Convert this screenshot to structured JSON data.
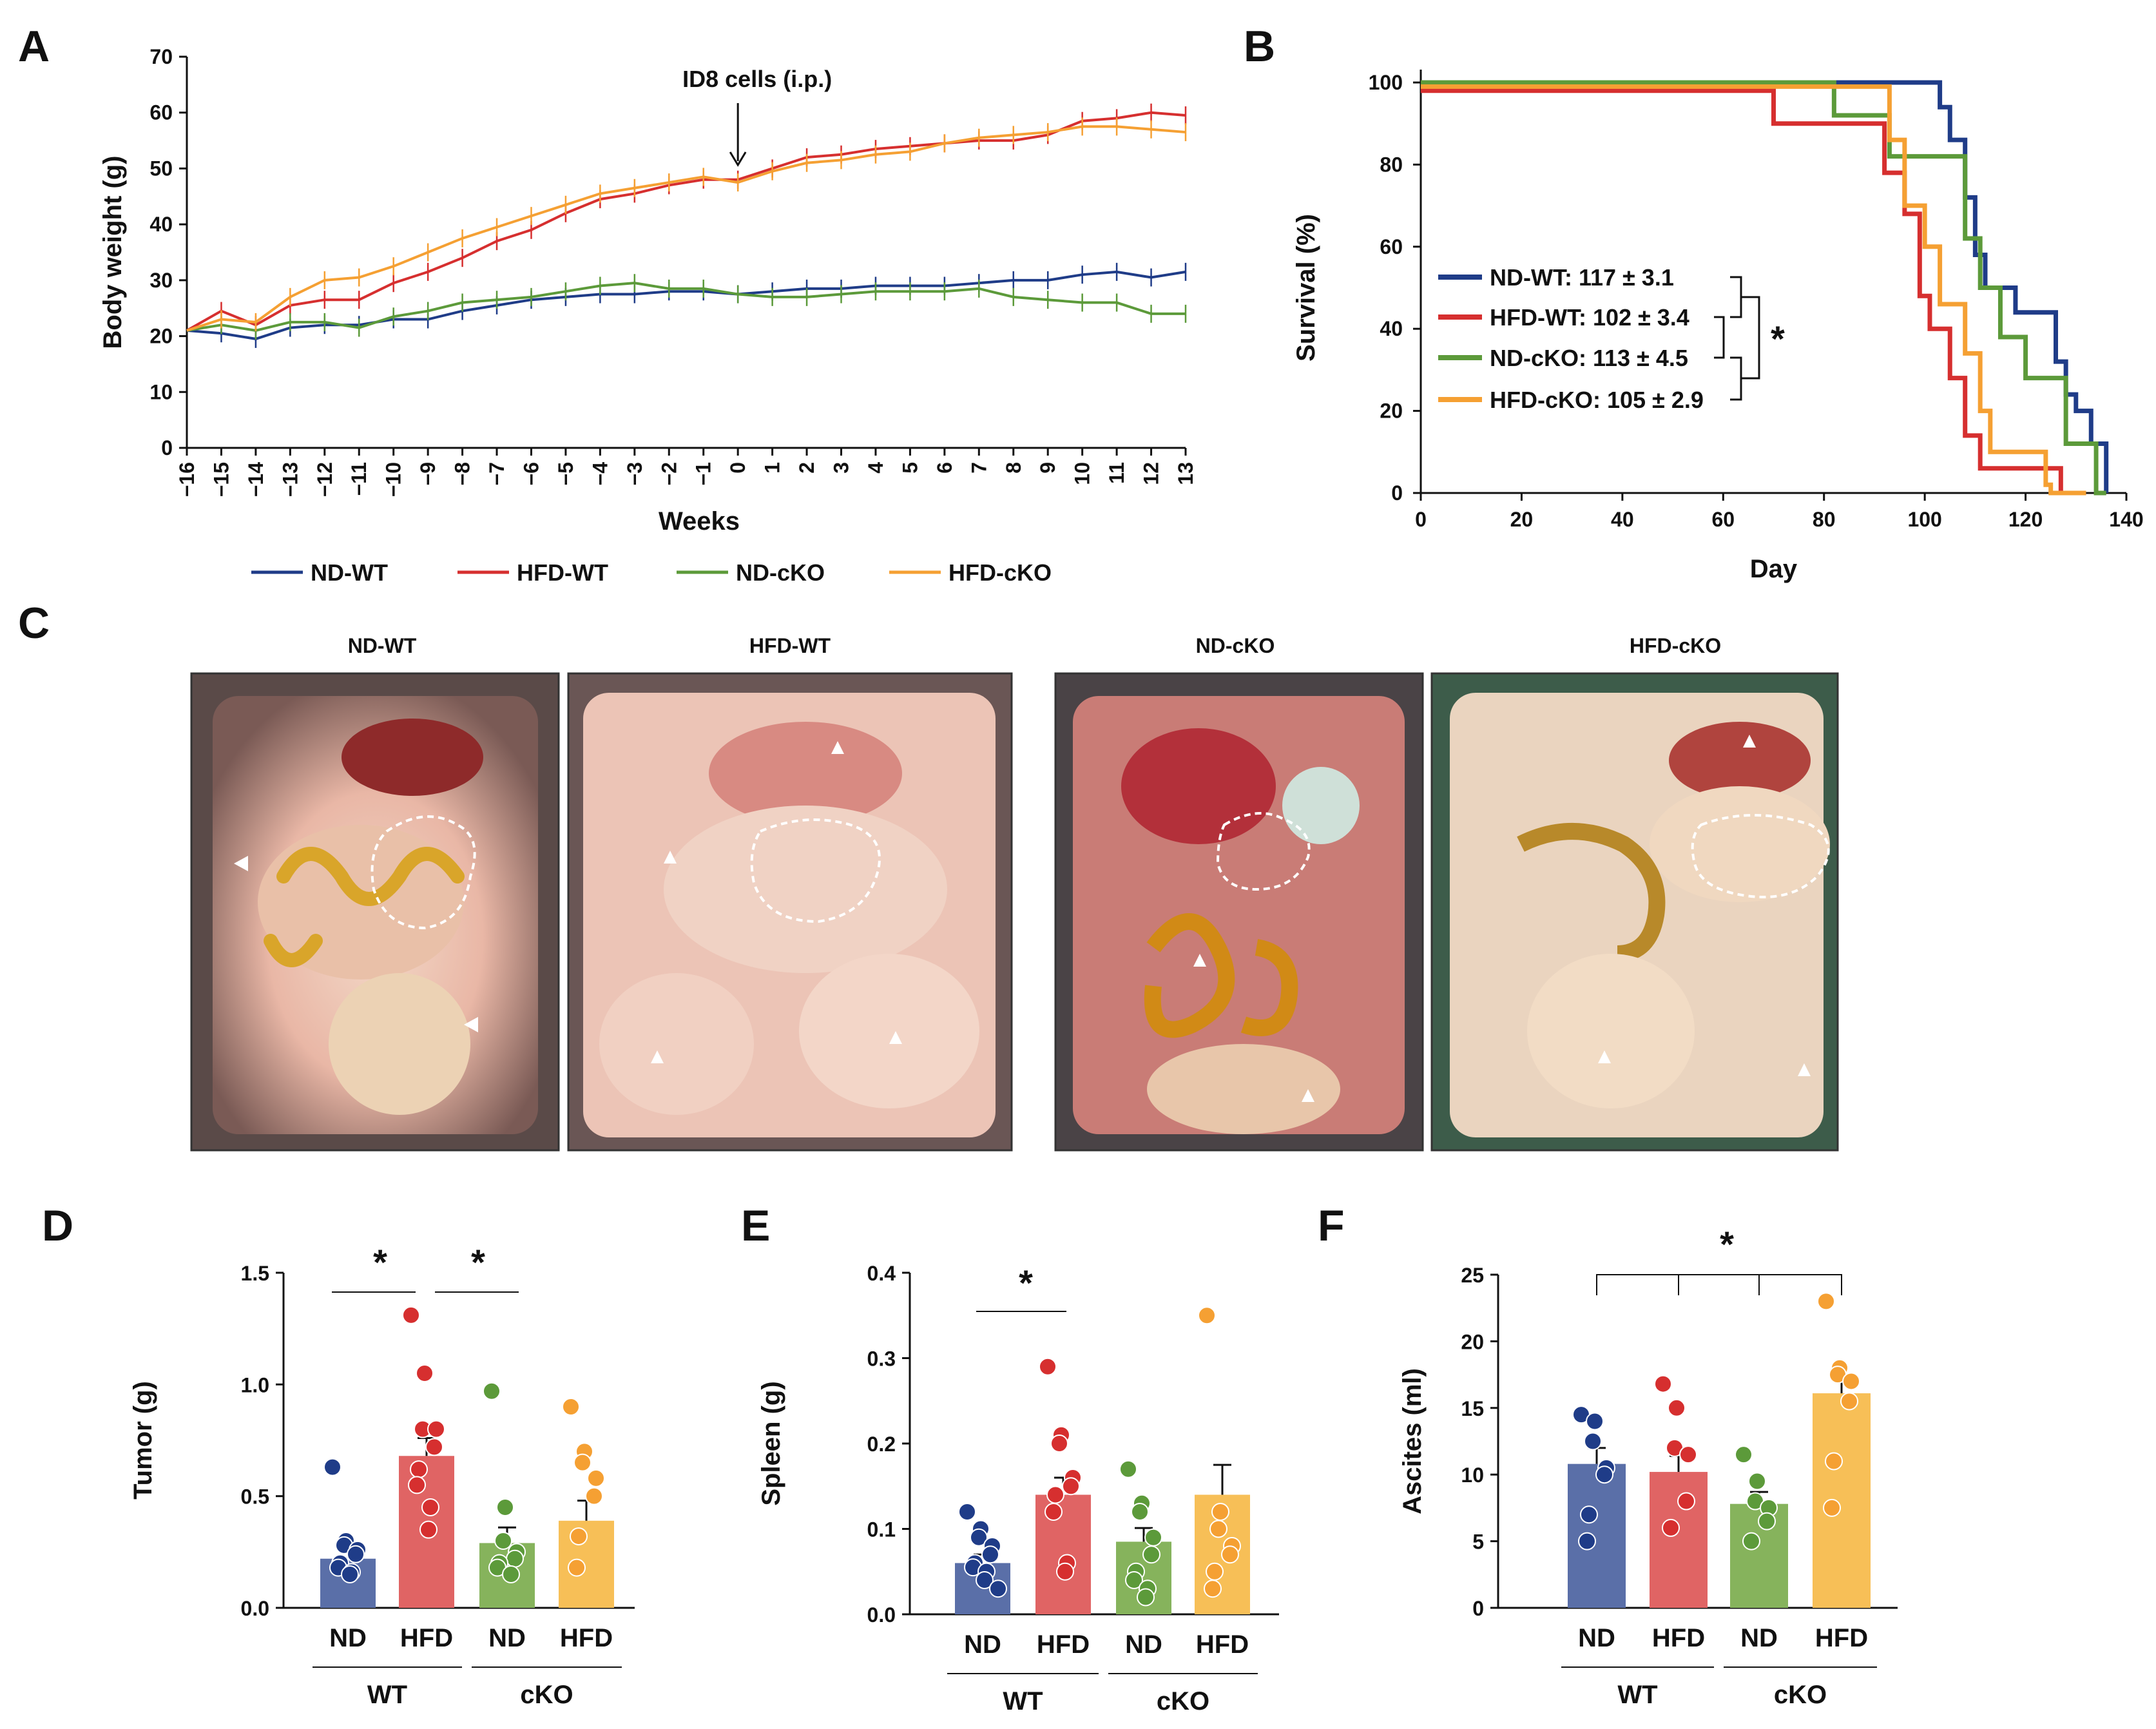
{
  "panel_labels": {
    "a": "A",
    "b": "B",
    "c": "C",
    "d": "D",
    "e": "E",
    "f": "F"
  },
  "colors": {
    "nd_wt": "#1f3c88",
    "hfd_wt": "#d62f2f",
    "nd_cko": "#5c9a3a",
    "hfd_cko": "#f5a033",
    "nd_wt_bar": "#5a6fa8",
    "hfd_wt_bar": "#e06464",
    "nd_cko_bar": "#86b35c",
    "hfd_cko_bar": "#f7bf57"
  },
  "chart_data": [
    {
      "id": "A",
      "type": "line",
      "title": "",
      "xlabel": "Weeks",
      "ylabel": "Body weight (g)",
      "ylim": [
        0,
        70
      ],
      "yticks": [
        0,
        10,
        20,
        30,
        40,
        50,
        60,
        70
      ],
      "x": [
        -16,
        -15,
        -14,
        -13,
        -12,
        -11,
        -10,
        -9,
        -8,
        -7,
        -6,
        -5,
        -4,
        -3,
        -2,
        -1,
        0,
        1,
        2,
        3,
        4,
        5,
        6,
        7,
        8,
        9,
        10,
        11,
        12,
        13
      ],
      "xtick_labels": [
        "−16",
        "−15",
        "−14",
        "−13",
        "−12",
        "−11",
        "−10",
        "−9",
        "−8",
        "−7",
        "−6",
        "−5",
        "−4",
        "−3",
        "−2",
        "−1",
        "0",
        "1",
        "2",
        "3",
        "4",
        "5",
        "6",
        "7",
        "8",
        "9",
        "10",
        "11",
        "12",
        "13"
      ],
      "annotation": "ID8 cells (i.p.)",
      "series": [
        {
          "name": "ND-WT",
          "values": [
            21,
            20.5,
            19.5,
            21.5,
            22,
            22,
            23,
            23,
            24.5,
            25.5,
            26.5,
            27,
            27.5,
            27.5,
            28,
            28,
            27.5,
            28,
            28.5,
            28.5,
            29,
            29,
            29,
            29.5,
            30,
            30,
            31,
            31.5,
            30.5,
            31.5
          ]
        },
        {
          "name": "HFD-WT",
          "values": [
            21,
            24.5,
            22,
            25.5,
            26.5,
            26.5,
            29.5,
            31.5,
            34,
            37,
            39,
            42,
            44.5,
            45.5,
            47,
            48,
            48,
            50,
            52,
            52.5,
            53.5,
            54,
            54.5,
            55,
            55,
            56,
            58.5,
            59,
            60,
            59.5
          ]
        },
        {
          "name": "ND-cKO",
          "values": [
            21,
            22,
            21,
            22.5,
            22.5,
            21.5,
            23.5,
            24.5,
            26,
            26.5,
            27,
            28,
            29,
            29.5,
            28.5,
            28.5,
            27.5,
            27,
            27,
            27.5,
            28,
            28,
            28,
            28.5,
            27,
            26.5,
            26,
            26,
            24,
            24
          ]
        },
        {
          "name": "HFD-cKO",
          "values": [
            21,
            23,
            22.5,
            27,
            30,
            30.5,
            32.5,
            35,
            37.5,
            39.5,
            41.5,
            43.5,
            45.5,
            46.5,
            47.5,
            48.5,
            47.5,
            49.5,
            51,
            51.5,
            52.5,
            53,
            54.5,
            55.5,
            56,
            56.5,
            57.5,
            57.5,
            57,
            56.5
          ]
        }
      ],
      "legend": [
        "ND-WT",
        "HFD-WT",
        "ND-cKO",
        "HFD-cKO"
      ]
    },
    {
      "id": "B",
      "type": "line",
      "title": "",
      "xlabel": "Day",
      "ylabel": "Survival (%)",
      "xlim": [
        0,
        140
      ],
      "ylim": [
        0,
        100
      ],
      "xticks": [
        0,
        20,
        40,
        60,
        80,
        100,
        120,
        140
      ],
      "yticks": [
        0,
        20,
        40,
        60,
        80,
        100
      ],
      "series": [
        {
          "name": "ND-WT",
          "legend": "ND-WT: 117 ± 3.1",
          "points": [
            [
              0,
              100
            ],
            [
              103,
              100
            ],
            [
              103,
              94
            ],
            [
              105,
              94
            ],
            [
              105,
              86
            ],
            [
              108,
              86
            ],
            [
              108,
              72
            ],
            [
              110,
              72
            ],
            [
              110,
              58
            ],
            [
              112,
              58
            ],
            [
              112,
              50
            ],
            [
              118,
              50
            ],
            [
              118,
              44
            ],
            [
              126,
              44
            ],
            [
              126,
              32
            ],
            [
              128,
              32
            ],
            [
              128,
              24
            ],
            [
              130,
              24
            ],
            [
              130,
              20
            ],
            [
              133,
              20
            ],
            [
              133,
              12
            ],
            [
              136,
              12
            ],
            [
              136,
              0
            ]
          ]
        },
        {
          "name": "HFD-WT",
          "legend": "HFD-WT: 102 ± 3.4",
          "points": [
            [
              0,
              98
            ],
            [
              70,
              98
            ],
            [
              70,
              90
            ],
            [
              92,
              90
            ],
            [
              92,
              78
            ],
            [
              96,
              78
            ],
            [
              96,
              68
            ],
            [
              99,
              68
            ],
            [
              99,
              48
            ],
            [
              101,
              48
            ],
            [
              101,
              40
            ],
            [
              105,
              40
            ],
            [
              105,
              28
            ],
            [
              108,
              28
            ],
            [
              108,
              14
            ],
            [
              111,
              14
            ],
            [
              111,
              6
            ],
            [
              127,
              6
            ],
            [
              127,
              0
            ],
            [
              132,
              0
            ]
          ]
        },
        {
          "name": "ND-cKO",
          "legend": "ND-cKO: 113 ± 4.5",
          "points": [
            [
              0,
              100
            ],
            [
              82,
              100
            ],
            [
              82,
              92
            ],
            [
              93,
              92
            ],
            [
              93,
              82
            ],
            [
              108,
              82
            ],
            [
              108,
              62
            ],
            [
              111,
              62
            ],
            [
              111,
              50
            ],
            [
              115,
              50
            ],
            [
              115,
              38
            ],
            [
              120,
              38
            ],
            [
              120,
              28
            ],
            [
              128,
              28
            ],
            [
              128,
              12
            ],
            [
              134,
              12
            ],
            [
              134,
              0
            ],
            [
              136,
              0
            ]
          ]
        },
        {
          "name": "HFD-cKO",
          "legend": "HFD-cKO: 105 ± 2.9",
          "points": [
            [
              0,
              99
            ],
            [
              93,
              99
            ],
            [
              93,
              86
            ],
            [
              96,
              86
            ],
            [
              96,
              70
            ],
            [
              100,
              70
            ],
            [
              100,
              60
            ],
            [
              103,
              60
            ],
            [
              103,
              46
            ],
            [
              108,
              46
            ],
            [
              108,
              34
            ],
            [
              111,
              34
            ],
            [
              111,
              20
            ],
            [
              113,
              20
            ],
            [
              113,
              10
            ],
            [
              124,
              10
            ],
            [
              124,
              2
            ],
            [
              125,
              2
            ],
            [
              125,
              0
            ],
            [
              132,
              0
            ]
          ]
        }
      ],
      "significance": "*"
    },
    {
      "id": "D",
      "type": "bar",
      "ylabel": "Tumor (g)",
      "ylim": [
        0,
        1.5
      ],
      "yticks": [
        "0.0",
        "0.5",
        "1.0",
        "1.5"
      ],
      "ytick_values": [
        0,
        0.5,
        1.0,
        1.5
      ],
      "categories": [
        "ND",
        "HFD",
        "ND",
        "HFD"
      ],
      "groups": [
        "WT",
        "cKO"
      ],
      "values": [
        0.22,
        0.68,
        0.29,
        0.39
      ],
      "errors": [
        0.05,
        0.08,
        0.07,
        0.09
      ],
      "points": [
        [
          0.63,
          0.3,
          0.28,
          0.26,
          0.24,
          0.2,
          0.18,
          0.16,
          0.15
        ],
        [
          1.31,
          1.05,
          0.8,
          0.8,
          0.72,
          0.62,
          0.55,
          0.45,
          0.35
        ],
        [
          0.97,
          0.45,
          0.3,
          0.25,
          0.22,
          0.2,
          0.18,
          0.15
        ],
        [
          0.9,
          0.7,
          0.65,
          0.58,
          0.5,
          0.32,
          0.18
        ]
      ],
      "significance": [
        "*",
        "*"
      ]
    },
    {
      "id": "E",
      "type": "bar",
      "ylabel": "Spleen (g)",
      "ylim": [
        0,
        0.4
      ],
      "yticks": [
        "0.0",
        "0.1",
        "0.2",
        "0.3",
        "0.4"
      ],
      "ytick_values": [
        0,
        0.1,
        0.2,
        0.3,
        0.4
      ],
      "categories": [
        "ND",
        "HFD",
        "ND",
        "HFD"
      ],
      "groups": [
        "WT",
        "cKO"
      ],
      "values": [
        0.06,
        0.14,
        0.085,
        0.14
      ],
      "errors": [
        0.01,
        0.02,
        0.016,
        0.035
      ],
      "points": [
        [
          0.12,
          0.1,
          0.09,
          0.08,
          0.07,
          0.06,
          0.055,
          0.05,
          0.04,
          0.03
        ],
        [
          0.29,
          0.21,
          0.2,
          0.16,
          0.15,
          0.14,
          0.12,
          0.06,
          0.05
        ],
        [
          0.17,
          0.13,
          0.12,
          0.09,
          0.07,
          0.05,
          0.04,
          0.03,
          0.02
        ],
        [
          0.35,
          0.12,
          0.1,
          0.08,
          0.07,
          0.05,
          0.03
        ]
      ],
      "significance": [
        "*"
      ]
    },
    {
      "id": "F",
      "type": "bar",
      "ylabel": "Ascites (ml)",
      "ylim": [
        0,
        25
      ],
      "yticks": [
        "0",
        "5",
        "10",
        "15",
        "20",
        "25"
      ],
      "ytick_values": [
        0,
        5,
        10,
        15,
        20,
        25
      ],
      "categories": [
        "ND",
        "HFD",
        "ND",
        "HFD"
      ],
      "groups": [
        "WT",
        "cKO"
      ],
      "values": [
        10.8,
        10.2,
        7.8,
        16.1
      ],
      "errors": [
        1.2,
        1.2,
        0.9,
        1.2
      ],
      "points": [
        [
          14.5,
          14,
          12.5,
          10.5,
          10,
          7,
          5
        ],
        [
          16.8,
          15,
          12,
          11.5,
          8,
          6
        ],
        [
          11.5,
          9.5,
          8,
          7.5,
          6.5,
          5
        ],
        [
          23,
          18,
          17.5,
          17,
          15.5,
          11,
          7.5
        ]
      ],
      "significance": [
        "*"
      ]
    }
  ],
  "panel_c": {
    "titles": [
      "ND-WT",
      "HFD-WT",
      "ND-cKO",
      "HFD-cKO"
    ]
  }
}
